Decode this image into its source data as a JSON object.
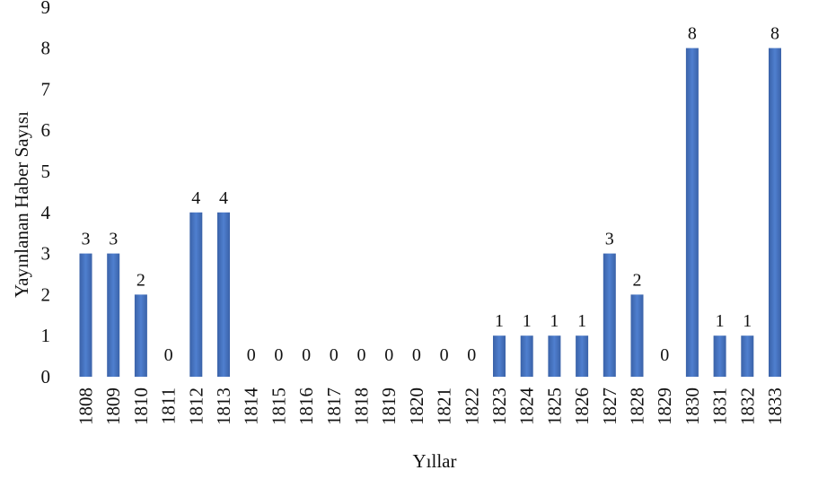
{
  "chart_data": {
    "type": "bar",
    "title": "",
    "xlabel": "Yıllar",
    "ylabel": "Yayınlanan Haber Sayısı",
    "ylim": [
      0,
      9
    ],
    "yticks": [
      "0",
      "1",
      "2",
      "3",
      "4",
      "5",
      "6",
      "7",
      "8",
      "9"
    ],
    "grid": false,
    "legend": "none",
    "bar_color": "#4472c4",
    "categories": [
      "1808",
      "1809",
      "1810",
      "1811",
      "1812",
      "1813",
      "1814",
      "1815",
      "1816",
      "1817",
      "1818",
      "1819",
      "1820",
      "1821",
      "1822",
      "1823",
      "1824",
      "1825",
      "1826",
      "1827",
      "1828",
      "1829",
      "1830",
      "1831",
      "1832",
      "1833"
    ],
    "values": [
      3,
      3,
      2,
      0,
      4,
      4,
      0,
      0,
      0,
      0,
      0,
      0,
      0,
      0,
      0,
      1,
      1,
      1,
      1,
      3,
      2,
      0,
      8,
      1,
      1,
      8
    ]
  }
}
